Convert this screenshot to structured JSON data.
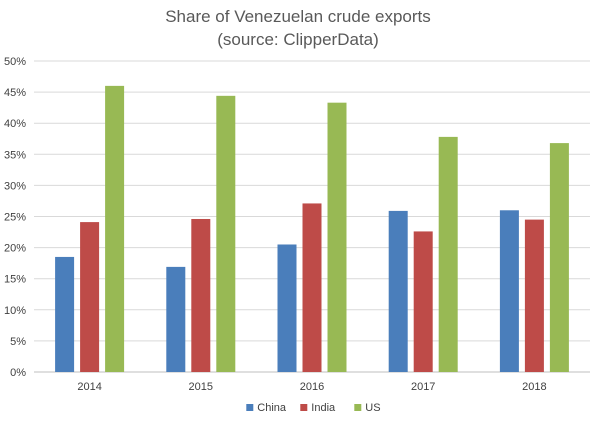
{
  "chart_data": {
    "type": "bar",
    "title": "Share of Venezuelan crude exports",
    "subtitle": "(source: ClipperData)",
    "xlabel": "",
    "ylabel": "",
    "categories": [
      "2014",
      "2015",
      "2016",
      "2017",
      "2018"
    ],
    "series": [
      {
        "name": "China",
        "color": "#4a7ebb",
        "values": [
          18.5,
          16.9,
          20.5,
          25.9,
          26.0
        ]
      },
      {
        "name": "India",
        "color": "#be4b48",
        "values": [
          24.1,
          24.6,
          27.1,
          22.6,
          24.5
        ]
      },
      {
        "name": "US",
        "color": "#98b954",
        "values": [
          46.0,
          44.4,
          43.3,
          37.8,
          36.8
        ]
      }
    ],
    "ylim": [
      0,
      50
    ],
    "yticks": [
      "0%",
      "5%",
      "10%",
      "15%",
      "20%",
      "25%",
      "30%",
      "35%",
      "40%",
      "45%",
      "50%"
    ],
    "grid": true,
    "legend_position": "bottom"
  }
}
